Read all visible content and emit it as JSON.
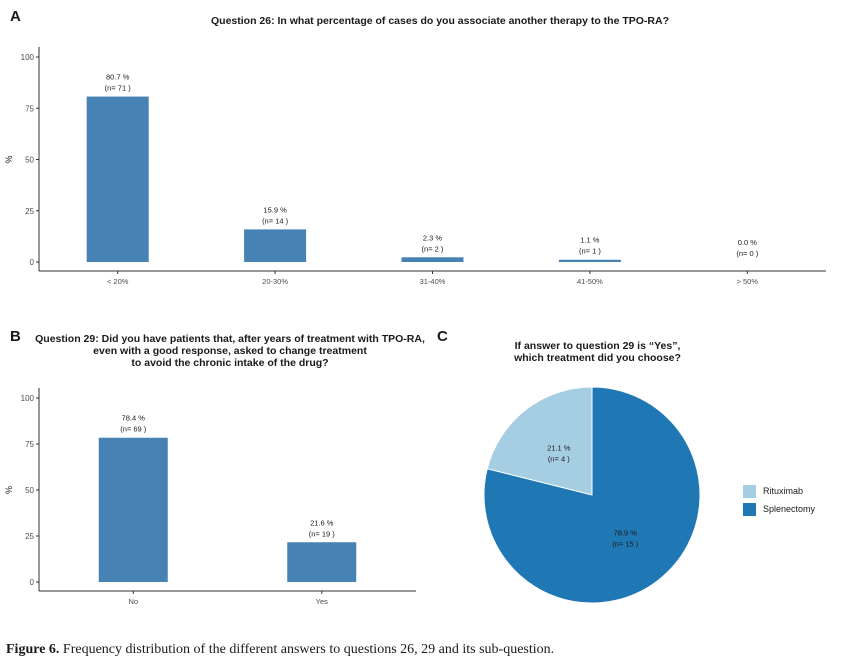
{
  "panel_a": {
    "letter": "A",
    "title_lines": [
      "Question 26: In what percentage of cases do you associate another therapy to the TPO-RA?"
    ]
  },
  "panel_b": {
    "letter": "B",
    "title_lines": [
      "Question 29: Did you have patients that, after years of treatment with TPO-RA,",
      "even with a good response, asked to change treatment",
      "to avoid the chronic intake of the drug?"
    ]
  },
  "panel_c": {
    "letter": "C",
    "title_lines": [
      "If answer to question 29 is “Yes”,",
      "which treatment did you choose?"
    ]
  },
  "colors": {
    "bar": "#4682b4",
    "rituximab": "#a6cee3",
    "splenectomy": "#1f78b4",
    "axis": "#333333"
  },
  "chart_data": [
    {
      "type": "bar",
      "title": "Question 26: In what percentage of cases do you associate another therapy to the TPO-RA?",
      "categories": [
        "< 20%",
        "20-30%",
        "31-40%",
        "41-50%",
        "> 50%"
      ],
      "values": [
        80.7,
        15.9,
        2.3,
        1.1,
        0.0
      ],
      "pct_labels": [
        "80.7 %",
        "15.9 %",
        "2.3 %",
        "1.1 %",
        "0.0 %"
      ],
      "n_labels": [
        "(n= 71 )",
        "(n= 14 )",
        "(n= 2 )",
        "(n= 1 )",
        "(n= 0 )"
      ],
      "ylabel": "%",
      "xlabel": "",
      "ylim": [
        0,
        100
      ],
      "yticks": [
        0,
        25,
        50,
        75,
        100
      ],
      "grid": false
    },
    {
      "type": "bar",
      "title": "Question 29: Did you have patients that, after years of treatment with TPO-RA, even with a good response, asked to change treatment to avoid the chronic intake of the drug?",
      "categories": [
        "No",
        "Yes"
      ],
      "values": [
        78.4,
        21.6
      ],
      "pct_labels": [
        "78.4 %",
        "21.6 %"
      ],
      "n_labels": [
        "(n= 69 )",
        "(n= 19 )"
      ],
      "ylabel": "%",
      "xlabel": "",
      "ylim": [
        0,
        100
      ],
      "yticks": [
        0,
        25,
        50,
        75,
        100
      ],
      "grid": false
    },
    {
      "type": "pie",
      "title": "If answer to question 29 is “Yes”, which treatment did you choose?",
      "labels": [
        "Rituximab",
        "Splenectomy"
      ],
      "values": [
        21.1,
        78.9
      ],
      "pct_labels": [
        "21.1 %",
        "78.9 %"
      ],
      "n_labels": [
        "(n= 4 )",
        "(n= 15 )"
      ],
      "legend": "right"
    }
  ],
  "caption": {
    "label": "Figure 6.",
    "text": " Frequency distribution of the different answers to questions 26, 29 and its sub-question."
  }
}
